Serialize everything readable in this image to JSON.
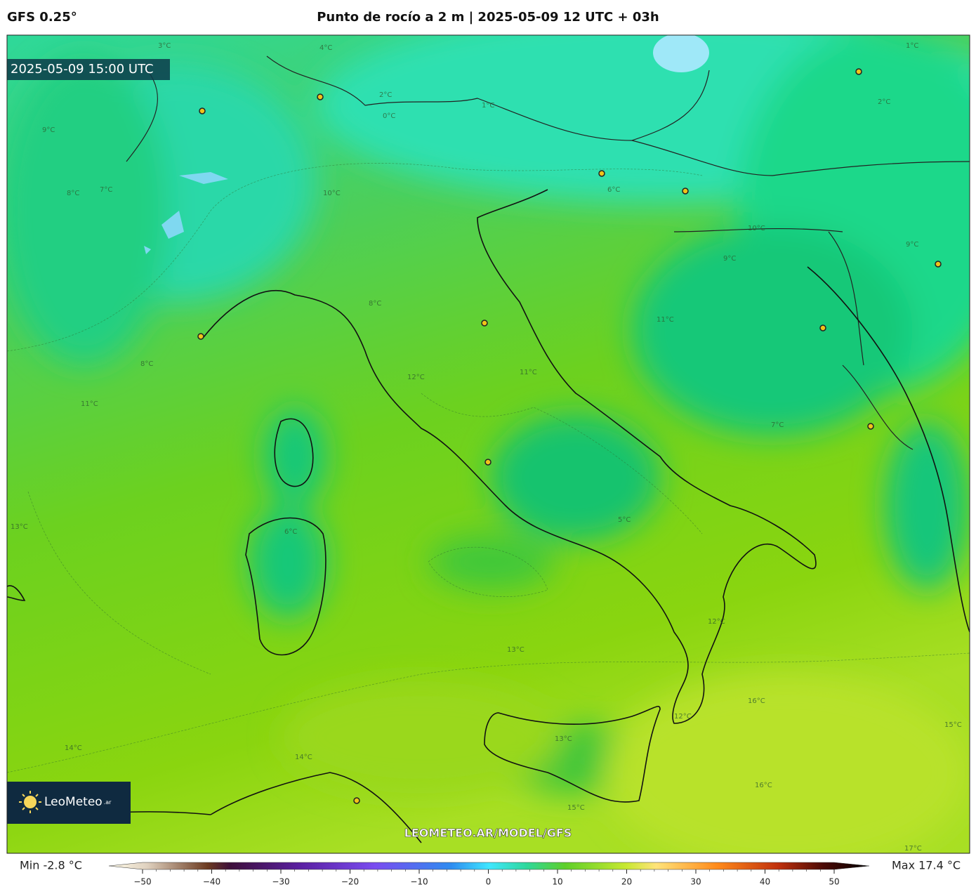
{
  "header": {
    "model": "GFS 0.25°",
    "title": "Punto de rocío a 2 m | 2025-05-09 12 UTC + 03h"
  },
  "map": {
    "valid_time": "2025-05-09 15:00 UTC",
    "watermark": "LEOMETEO.AR/MODEL/GFS",
    "logo": "LeoMeteo",
    "logo_suffix": ".ar",
    "contour_labels": [
      "3°C",
      "4°C",
      "2°C",
      "1°C",
      "0°C",
      "10°C",
      "9°C",
      "8°C",
      "7°C",
      "6°C",
      "5°C",
      "12°C",
      "11°C",
      "13°C",
      "14°C",
      "16°C",
      "15°C",
      "17°C",
      "9°C",
      "10°C",
      "12°C",
      "13°C",
      "11°C",
      "6°C",
      "8°C",
      "2°C",
      "1°C",
      "9°C",
      "7°C",
      "11°C",
      "16°C",
      "15°C",
      "13°C",
      "12°C",
      "14°C",
      "8°C"
    ]
  },
  "colorbar": {
    "min_label": "Min -2.8 °C",
    "max_label": "Max 17.4 °C",
    "lim": [
      -50,
      50
    ],
    "ticks": [
      {
        "value": -50,
        "label": "−50"
      },
      {
        "value": -40,
        "label": "−40"
      },
      {
        "value": -30,
        "label": "−30"
      },
      {
        "value": -20,
        "label": "−20"
      },
      {
        "value": -10,
        "label": "−10"
      },
      0,
      10,
      20,
      30,
      40,
      50
    ]
  }
}
